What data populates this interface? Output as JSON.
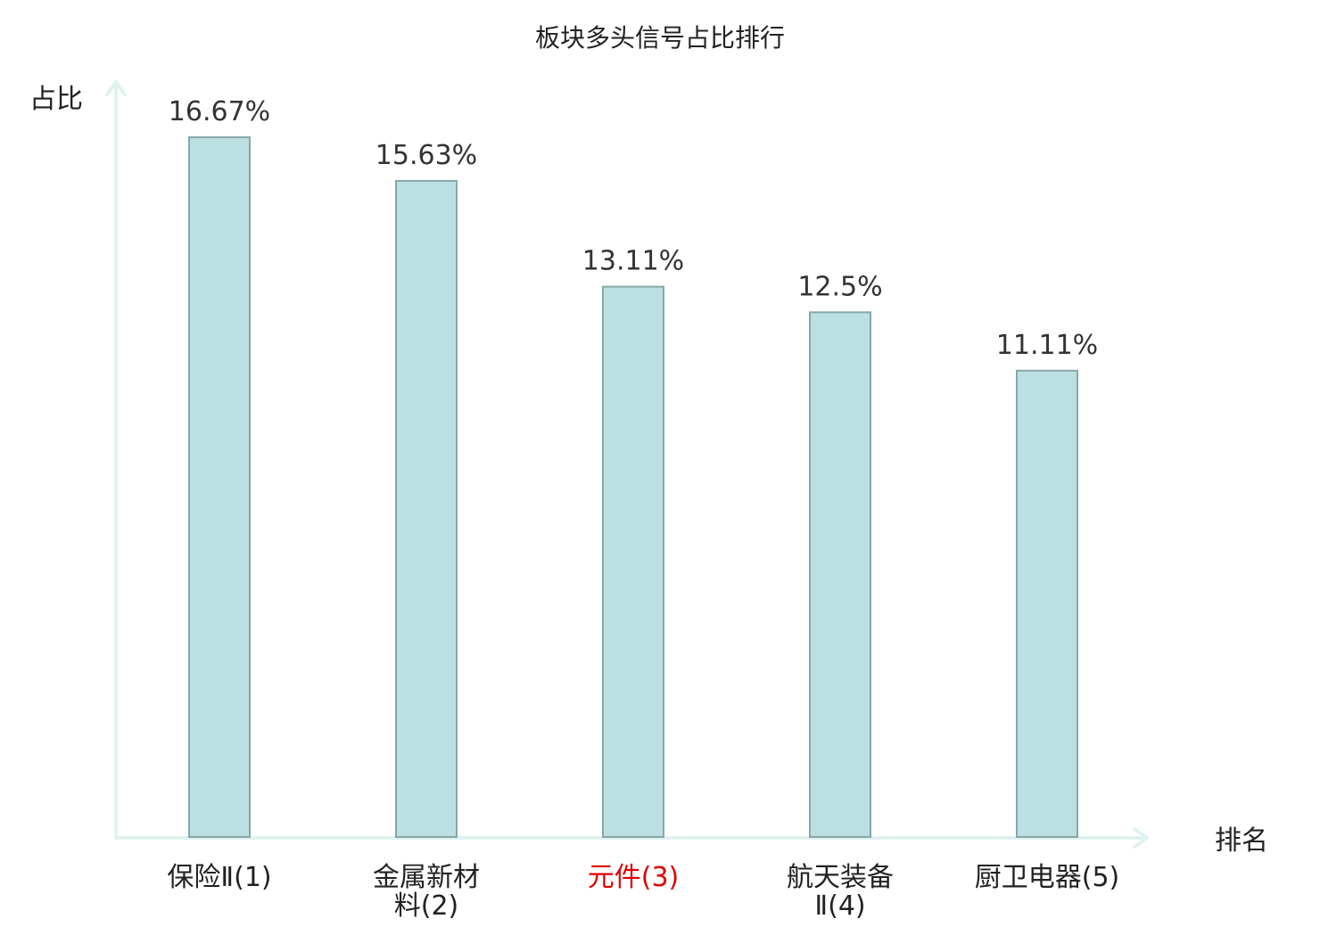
{
  "chart_data": {
    "type": "bar",
    "title": "板块多头信号占比排行",
    "ylabel": "占比",
    "xlabel": "排名",
    "categories": [
      [
        "保险Ⅱ(1)"
      ],
      [
        "金属新材",
        "料(2)"
      ],
      [
        "元件(3)"
      ],
      [
        "航天装备",
        "Ⅱ(4)"
      ],
      [
        "厨卫电器(5)"
      ]
    ],
    "values": [
      16.67,
      15.63,
      13.11,
      12.5,
      11.11
    ],
    "value_labels": [
      "16.67%",
      "15.63%",
      "13.11%",
      "12.5%",
      "11.11%"
    ],
    "highlight_index": 2,
    "ylim": [
      0,
      16.67
    ],
    "grid": false,
    "colors": {
      "bar_fill": "#bce0e1",
      "bar_stroke": "#86a7a7",
      "axis": "#dff2ef",
      "label": "#222222",
      "value_label": "#333333",
      "highlight": "#e00000"
    }
  }
}
